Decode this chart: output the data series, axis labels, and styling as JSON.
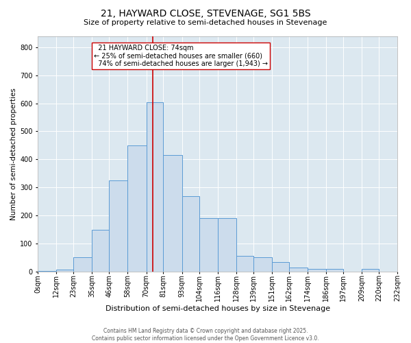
{
  "title": "21, HAYWARD CLOSE, STEVENAGE, SG1 5BS",
  "subtitle": "Size of property relative to semi-detached houses in Stevenage",
  "xlabel": "Distribution of semi-detached houses by size in Stevenage",
  "ylabel": "Number of semi-detached properties",
  "footer_line1": "Contains HM Land Registry data © Crown copyright and database right 2025.",
  "footer_line2": "Contains public sector information licensed under the Open Government Licence v3.0.",
  "property_size": 74,
  "smaller_pct": "25%",
  "smaller_count": 660,
  "larger_pct": "74%",
  "larger_count": 1943,
  "bin_edges": [
    0,
    12,
    23,
    35,
    46,
    58,
    70,
    81,
    93,
    104,
    116,
    128,
    139,
    151,
    162,
    174,
    186,
    197,
    209,
    220,
    232
  ],
  "bin_labels": [
    "0sqm",
    "12sqm",
    "23sqm",
    "35sqm",
    "46sqm",
    "58sqm",
    "70sqm",
    "81sqm",
    "93sqm",
    "104sqm",
    "116sqm",
    "128sqm",
    "139sqm",
    "151sqm",
    "162sqm",
    "174sqm",
    "186sqm",
    "197sqm",
    "209sqm",
    "220sqm",
    "232sqm"
  ],
  "bar_heights": [
    2,
    8,
    50,
    150,
    325,
    450,
    605,
    415,
    270,
    190,
    190,
    55,
    50,
    35,
    15,
    10,
    10,
    0,
    10,
    0
  ],
  "bar_color": "#ccdcec",
  "bar_edge_color": "#5b9bd5",
  "line_color": "#cc0000",
  "bg_color": "#dce8f0",
  "box_facecolor": "white",
  "box_edgecolor": "#cc0000",
  "ylim": [
    0,
    840
  ],
  "yticks": [
    0,
    100,
    200,
    300,
    400,
    500,
    600,
    700,
    800
  ],
  "title_fontsize": 10,
  "subtitle_fontsize": 8,
  "ylabel_fontsize": 7.5,
  "xlabel_fontsize": 8,
  "tick_fontsize": 7,
  "annotation_fontsize": 7,
  "footer_fontsize": 5.5
}
